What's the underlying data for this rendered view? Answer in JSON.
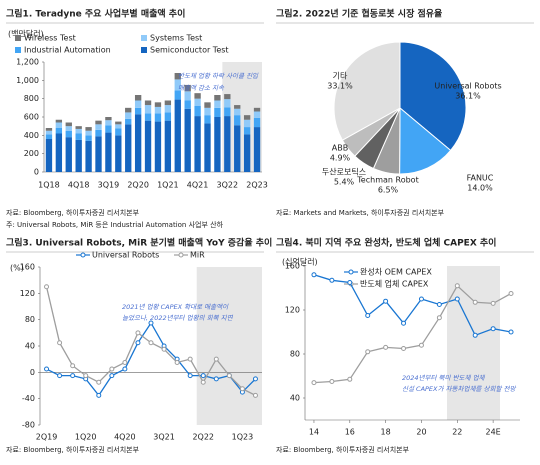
{
  "chart_data": [
    {
      "type": "bar",
      "stacked": true,
      "title": "그림1. Teradyne 주요 사업부별 매출액 추이",
      "unit": "(백만달러)",
      "categories": [
        "1Q18",
        null,
        null,
        "4Q18",
        null,
        null,
        "3Q19",
        null,
        null,
        "2Q20",
        null,
        null,
        "1Q21",
        null,
        null,
        "4Q21",
        null,
        null,
        "3Q22",
        null,
        null,
        "2Q23"
      ],
      "series": [
        {
          "name": "Semiconductor Test",
          "color": "#1565c0",
          "values": [
            360,
            420,
            380,
            350,
            340,
            390,
            430,
            400,
            520,
            630,
            560,
            550,
            560,
            790,
            690,
            610,
            530,
            600,
            610,
            510,
            410,
            490
          ]
        },
        {
          "name": "Industrial Automation",
          "color": "#42a5f5",
          "values": [
            50,
            60,
            70,
            70,
            60,
            70,
            80,
            75,
            60,
            70,
            80,
            90,
            90,
            100,
            90,
            110,
            90,
            100,
            95,
            110,
            80,
            100
          ]
        },
        {
          "name": "Systems Test",
          "color": "#90caf9",
          "values": [
            40,
            60,
            50,
            50,
            50,
            60,
            55,
            45,
            70,
            80,
            90,
            70,
            80,
            120,
            100,
            80,
            80,
            80,
            90,
            70,
            80,
            70
          ]
        },
        {
          "name": "Wireless Test",
          "color": "#757575",
          "values": [
            30,
            30,
            40,
            30,
            40,
            40,
            35,
            30,
            50,
            60,
            50,
            50,
            50,
            70,
            70,
            60,
            60,
            60,
            55,
            40,
            50,
            40
          ]
        }
      ],
      "ylim": [
        0,
        1200
      ],
      "yticks": [
        0,
        200,
        400,
        600,
        800,
        {
          "value": 1000,
          "label": "1,000"
        },
        {
          "value": 1200,
          "label": "1,200"
        }
      ],
      "grid": false,
      "annotations": [
        "반도체 업황 하락 사이클 진입",
        "매출액 감소 지속"
      ],
      "source": "자료: Bloomberg, 하이투자증권 리서치본부",
      "note": "주: Universal Robots, MiR 등은 Industrial Automation 사업부 산하"
    },
    {
      "type": "pie",
      "title": "그림2. 2022년 기준 협동로봇 시장 점유율",
      "labels": [
        "Universal Robots",
        "FANUC",
        "Techman Robot",
        "두산로보틱스",
        "ABB",
        "기타"
      ],
      "values": [
        36.1,
        14.0,
        6.5,
        5.4,
        4.9,
        33.1
      ],
      "value_labels": [
        "36.1%",
        "14.0%",
        "6.5%",
        "5.4%",
        "4.9%",
        "33.1%"
      ],
      "colors": [
        "#1565c0",
        "#42a5f5",
        "#9e9e9e",
        "#616161",
        "#bdbdbd",
        "#e0e0e0"
      ],
      "source": "자료: Markets and Markets, 하이투자증권 리서치본부"
    },
    {
      "type": "line",
      "title": "그림3. Universal Robots, MiR 분기별 매출액 YoY 증감율 추이",
      "unit": "(%)",
      "categories": [
        "2Q19",
        null,
        null,
        "1Q20",
        null,
        null,
        "4Q20",
        null,
        null,
        "3Q21",
        null,
        null,
        "2Q22",
        null,
        null,
        "1Q23",
        null
      ],
      "series": [
        {
          "name": "Universal Robots",
          "color": "#1976d2",
          "values": [
            5,
            -5,
            -5,
            -10,
            -35,
            -5,
            5,
            45,
            75,
            40,
            20,
            -5,
            -5,
            -10,
            -5,
            -30,
            -10
          ]
        },
        {
          "name": "MiR",
          "color": "#9e9e9e",
          "values": [
            130,
            45,
            10,
            -5,
            -15,
            5,
            15,
            60,
            45,
            35,
            15,
            20,
            -15,
            20,
            -5,
            -25,
            -35
          ]
        }
      ],
      "ylim": [
        -80,
        160
      ],
      "yticks": [
        -80,
        -40,
        0,
        40,
        80,
        120,
        160
      ],
      "grid": false,
      "annotations": [
        "2021년 업황 CAPEX 확대로 매출액이",
        "늘었으나, 2022년부터 업황의 회복 지연"
      ],
      "source": "자료: Bloomberg, 하이투자증권 리서치본부"
    },
    {
      "type": "line",
      "title": "그림4. 북미 지역 주요 완성차, 반도체 업체 CAPEX 추이",
      "unit": "(십억달러)",
      "x": [
        14,
        15,
        16,
        17,
        18,
        19,
        20,
        21,
        22,
        23,
        24,
        25
      ],
      "series": [
        {
          "name": "완성차 OEM CAPEX",
          "color": "#1976d2",
          "values": [
            152,
            147,
            145,
            115,
            128,
            108,
            130,
            125,
            130,
            97,
            103,
            100
          ]
        },
        {
          "name": "반도체 업체 CAPEX",
          "color": "#9e9e9e",
          "values": [
            54,
            55,
            57,
            82,
            86,
            85,
            88,
            113,
            142,
            127,
            126,
            135
          ]
        }
      ],
      "xlim": [
        13.5,
        25.5
      ],
      "xticks": [
        14,
        16,
        18,
        20,
        22,
        {
          "value": 24,
          "label": "24E"
        }
      ],
      "ylim": [
        20,
        160
      ],
      "yticks": [
        40,
        80,
        120,
        160
      ],
      "grid": false,
      "annotations": [
        "2024년부터 북미 반도체 업체",
        "신설 CAPEX가 자동차업체를 상회할 전망"
      ],
      "source": "자료: Bloomberg, 하이투자증권 리서치본부"
    }
  ]
}
